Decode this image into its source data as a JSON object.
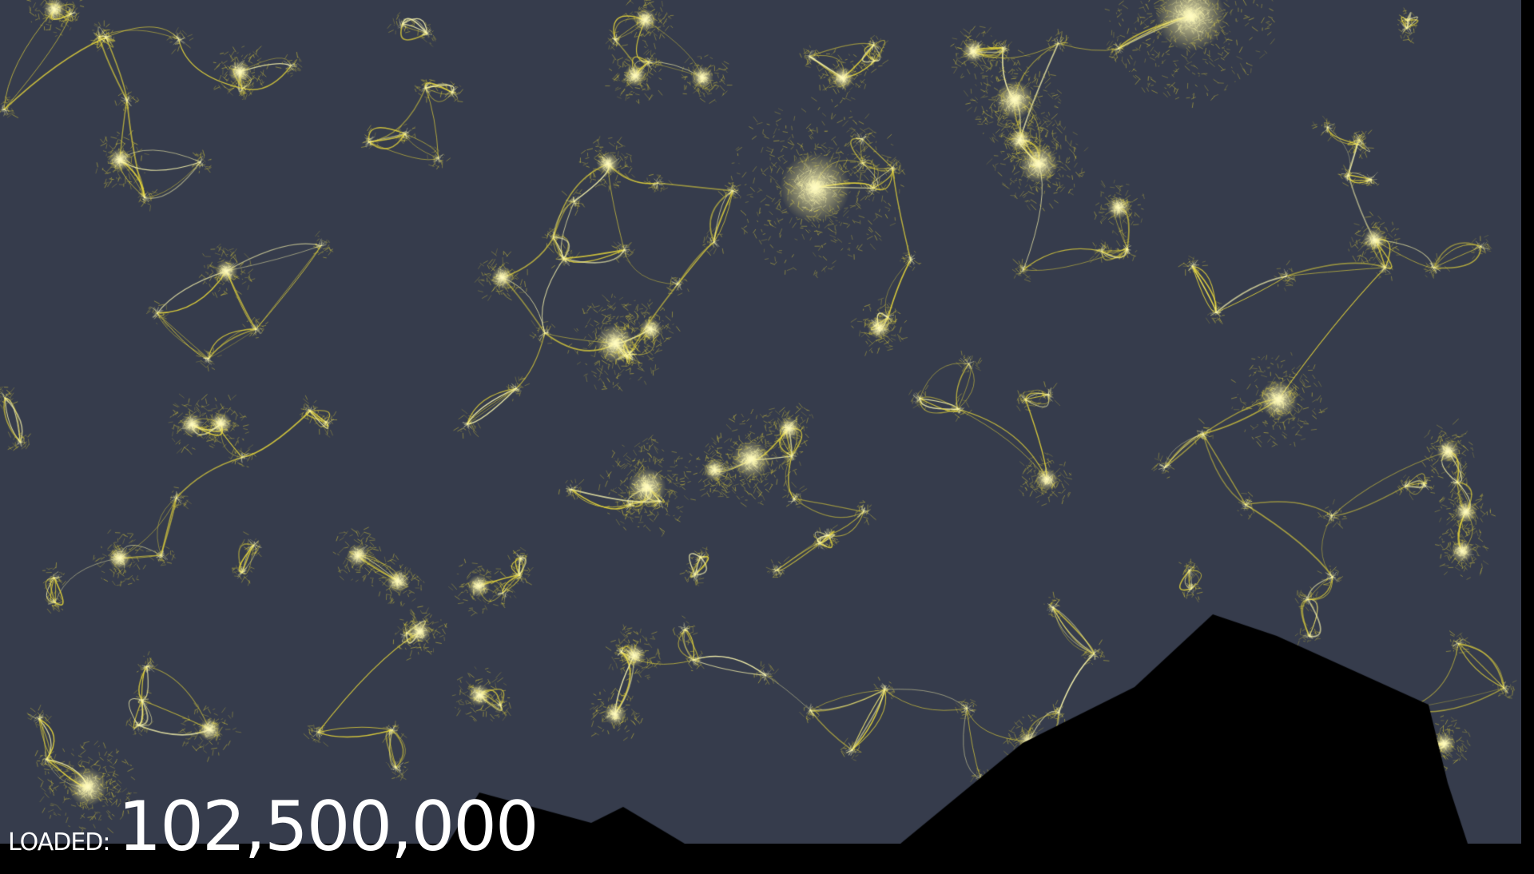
{
  "status": {
    "loaded_label": "LOADED:",
    "loaded_count": "102,500,000"
  },
  "map": {
    "style": "dark land with bright yellow density traces",
    "colors": {
      "land": "#363c4c",
      "sea": "#000000",
      "trace": "#e8d83a",
      "trace_bright": "#fffbb0"
    }
  }
}
